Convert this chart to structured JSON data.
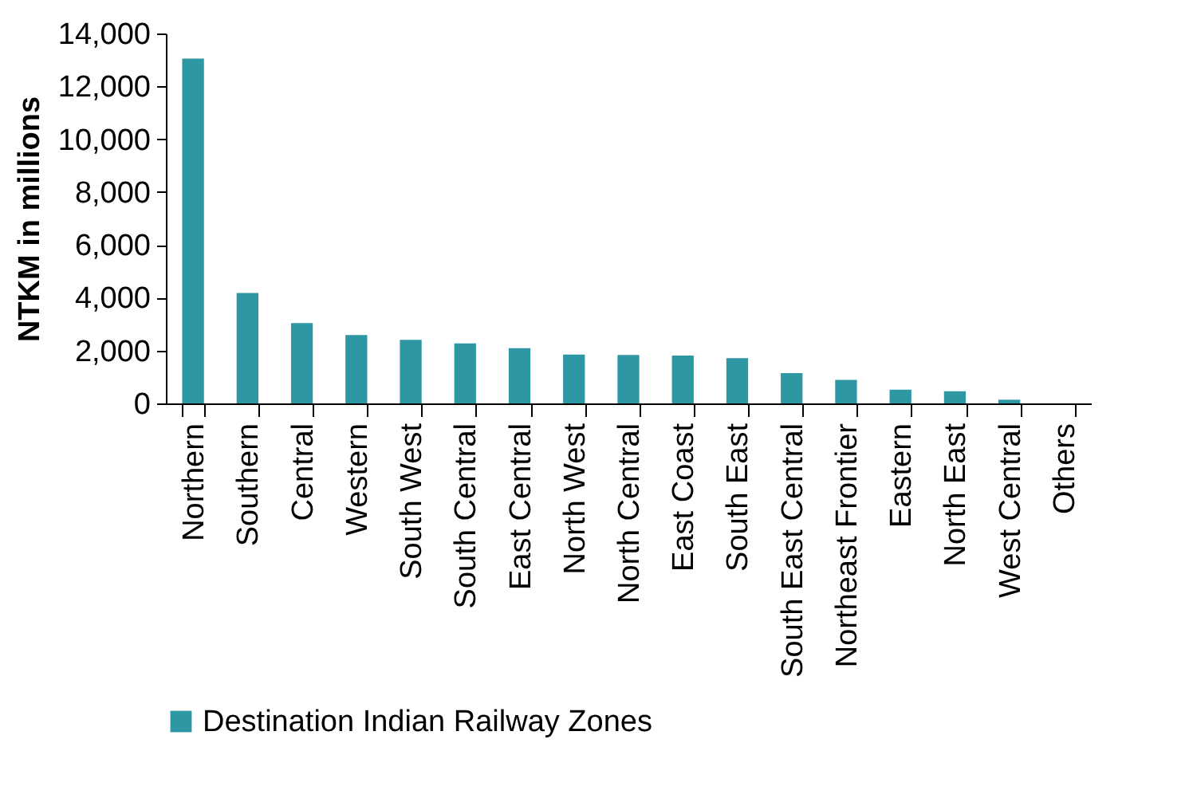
{
  "chart_data": {
    "type": "bar",
    "ylabel": "NTKM in millions",
    "categories": [
      "Northern",
      "Southern",
      "Central",
      "Western",
      "South West",
      "South Central",
      "East Central",
      "North West",
      "North Central",
      "East Coast",
      "South East",
      "South East Central",
      "Northeast Frontier",
      "Eastern",
      "North East",
      "West Central",
      "Others"
    ],
    "series": [
      {
        "name": "Destination Indian Railway Zones",
        "color": "#2e97a4",
        "values": [
          13050,
          4180,
          3040,
          2590,
          2410,
          2270,
          2090,
          1850,
          1830,
          1810,
          1710,
          1150,
          890,
          520,
          460,
          140,
          0
        ]
      }
    ],
    "ylim": [
      0,
      14000
    ],
    "yticks": [
      0,
      {
        "value": 2000,
        "label": "2,000"
      },
      {
        "value": 4000,
        "label": "4,000"
      },
      {
        "value": 6000,
        "label": "6,000"
      },
      {
        "value": 8000,
        "label": "8,000"
      },
      {
        "value": 10000,
        "label": "10,000"
      },
      {
        "value": 12000,
        "label": "12,000"
      },
      {
        "value": 14000,
        "label": "14,000"
      }
    ],
    "grid": false,
    "legend": "bottom"
  }
}
